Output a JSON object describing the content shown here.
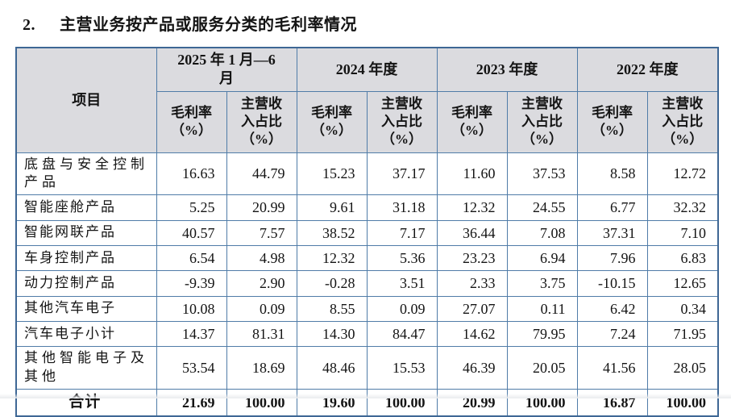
{
  "title": {
    "number": "2.",
    "text": "主营业务按产品或服务分类的毛利率情况"
  },
  "table": {
    "item_header": "项目",
    "periods": [
      "2025 年 1 月—6\n月",
      "2024 年度",
      "2023 年度",
      "2022 年度"
    ],
    "sub_margin": "毛利率\n（%）",
    "sub_share": "主营收\n入占比\n（%）",
    "rows": [
      {
        "label": "底盘与安全控制\n产品",
        "spread": true,
        "values": [
          "16.63",
          "44.79",
          "15.23",
          "37.17",
          "11.60",
          "37.53",
          "8.58",
          "12.72"
        ]
      },
      {
        "label": "智能座舱产品",
        "values": [
          "5.25",
          "20.99",
          "9.61",
          "31.18",
          "12.32",
          "24.55",
          "6.77",
          "32.32"
        ]
      },
      {
        "label": "智能网联产品",
        "values": [
          "40.57",
          "7.57",
          "38.52",
          "7.17",
          "36.44",
          "7.08",
          "37.31",
          "7.10"
        ]
      },
      {
        "label": "车身控制产品",
        "values": [
          "6.54",
          "4.98",
          "12.32",
          "5.36",
          "23.23",
          "6.94",
          "7.96",
          "6.83"
        ]
      },
      {
        "label": "动力控制产品",
        "values": [
          "-9.39",
          "2.90",
          "-0.28",
          "3.51",
          "2.33",
          "3.75",
          "-10.15",
          "12.65"
        ]
      },
      {
        "label": "其他汽车电子",
        "values": [
          "10.08",
          "0.09",
          "8.55",
          "0.09",
          "27.07",
          "0.11",
          "6.42",
          "0.34"
        ]
      },
      {
        "label": "汽车电子小计",
        "values": [
          "14.37",
          "81.31",
          "14.30",
          "84.47",
          "14.62",
          "79.95",
          "7.24",
          "71.95"
        ]
      },
      {
        "label": "其他智能电子及\n其他",
        "spread": true,
        "values": [
          "53.54",
          "18.69",
          "48.46",
          "15.53",
          "46.39",
          "20.05",
          "41.56",
          "28.05"
        ]
      },
      {
        "label": "合计",
        "total": true,
        "values": [
          "21.69",
          "100.00",
          "19.60",
          "100.00",
          "20.99",
          "100.00",
          "16.87",
          "100.00"
        ]
      }
    ]
  }
}
